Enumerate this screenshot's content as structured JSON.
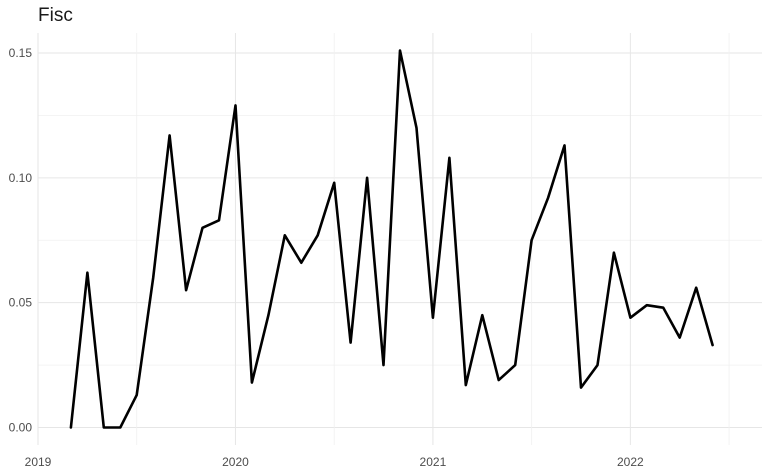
{
  "chart_data": {
    "type": "line",
    "title": "Fisc",
    "xlabel": "",
    "ylabel": "",
    "x_ticks": [
      "2019",
      "2020",
      "2021",
      "2022"
    ],
    "y_ticks": [
      "0.00",
      "0.05",
      "0.10",
      "0.15"
    ],
    "xlim": [
      "2019-01-01",
      "2022-09-01"
    ],
    "ylim": [
      -0.007,
      0.158
    ],
    "grid": true,
    "series": [
      {
        "color": "#000000",
        "x": [
          "2019-03",
          "2019-04",
          "2019-05",
          "2019-06",
          "2019-07",
          "2019-08",
          "2019-09",
          "2019-10",
          "2019-11",
          "2019-12",
          "2020-01",
          "2020-02",
          "2020-03",
          "2020-04",
          "2020-05",
          "2020-06",
          "2020-07",
          "2020-08",
          "2020-09",
          "2020-10",
          "2020-11",
          "2020-12",
          "2021-01",
          "2021-02",
          "2021-03",
          "2021-04",
          "2021-05",
          "2021-06",
          "2021-07",
          "2021-08",
          "2021-09",
          "2021-10",
          "2021-11",
          "2021-12",
          "2022-01",
          "2022-02",
          "2022-03",
          "2022-04",
          "2022-05",
          "2022-06"
        ],
        "values": [
          0.0,
          0.062,
          0.0,
          0.0,
          0.013,
          0.06,
          0.117,
          0.055,
          0.08,
          0.083,
          0.129,
          0.018,
          0.045,
          0.077,
          0.066,
          0.077,
          0.098,
          0.034,
          0.1,
          0.025,
          0.151,
          0.12,
          0.044,
          0.108,
          0.017,
          0.045,
          0.019,
          0.025,
          0.075,
          0.092,
          0.113,
          0.016,
          0.025,
          0.07,
          0.044,
          0.049,
          0.048,
          0.036,
          0.056,
          0.033
        ]
      }
    ]
  }
}
